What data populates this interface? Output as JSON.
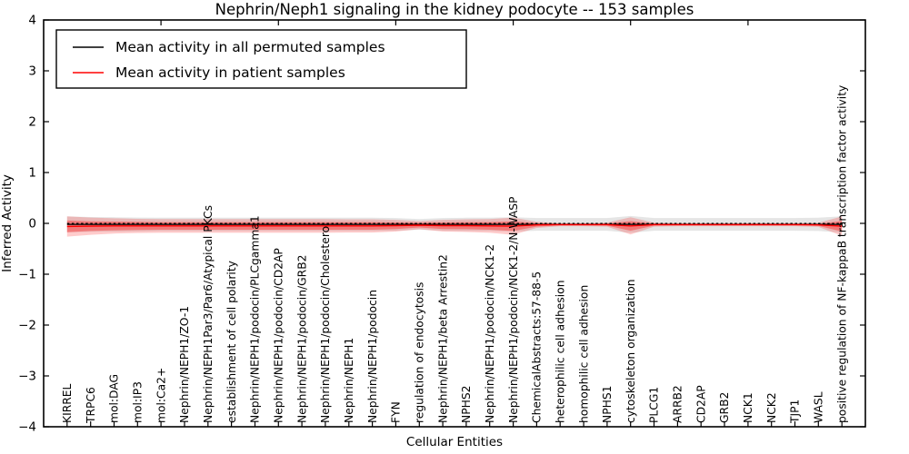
{
  "chart_data": {
    "type": "area",
    "title": "Nephrin/Neph1 signaling in the kidney podocyte -- 153 samples",
    "xlabel": "Cellular Entities",
    "ylabel": "Inferred Activity",
    "xlim": [
      0,
      35
    ],
    "ylim": [
      -4,
      4
    ],
    "yticks": [
      4,
      3,
      2,
      1,
      0,
      -1,
      -2,
      -3,
      -4
    ],
    "ytick_labels": [
      "4",
      "3",
      "2",
      "1",
      "0",
      "−1",
      "−2",
      "−3",
      "−4"
    ],
    "top_ticks_at": [
      5,
      10,
      15,
      20,
      25,
      30
    ],
    "grid": false,
    "legend_position": "upper-left",
    "legend": [
      {
        "label": "Mean activity in all permuted samples",
        "color": "#000000"
      },
      {
        "label": "Mean activity in patient samples",
        "color": "#ff0000"
      }
    ],
    "colors": {
      "permuted_fill": "rgba(125,125,125,0.20)",
      "patient_fill_outer": "rgba(255,0,0,0.20)",
      "patient_fill_inner": "rgba(255,0,0,0.33)",
      "permuted_line": "#000000",
      "patient_line": "#ff0000",
      "zero_line": "#000000"
    },
    "entities": [
      "KIRREL",
      "TRPC6",
      "mol:DAG",
      "mol:IP3",
      "mol:Ca2+",
      "Nephrin/NEPH1/ZO-1",
      "Nephrin/NEPH1Par3/Par6/Atypical PKCs",
      "establishment of cell polarity",
      "Nephrin/NEPH1/podocin/PLCgamma1",
      "Nephrin/NEPH1/podocin/CD2AP",
      "Nephrin/NEPH1/podocin/GRB2",
      "Nephrin/NEPH1/podocin/Cholesterol",
      "Nephrin/NEPH1",
      "Nephrin/NEPH1/podocin",
      "FYN",
      "regulation of endocytosis",
      "Nephrin/NEPH1/beta Arrestin2",
      "NPHS2",
      "Nephrin/NEPH1/podocin/NCK1-2",
      "Nephrin/NEPH1/podocin/NCK1-2/N-WASP",
      "ChemicalAbstracts:57-88-5",
      "heterophilic cell adhesion",
      "homophilic cell adhesion",
      "NPHS1",
      "cytoskeleton organization",
      "PLCG1",
      "ARRB2",
      "CD2AP",
      "GRB2",
      "NCK1",
      "NCK2",
      "TJP1",
      "WASL",
      "positive regulation of NF-kappaB transcription factor activity"
    ],
    "series": [
      {
        "role": "permuted_band",
        "name": "Permuted samples band",
        "half_widths": [
          0.155,
          0.145,
          0.14,
          0.135,
          0.13,
          0.13,
          0.13,
          0.13,
          0.13,
          0.13,
          0.13,
          0.13,
          0.13,
          0.13,
          0.125,
          0.105,
          0.125,
          0.13,
          0.13,
          0.14,
          0.125,
          0.125,
          0.125,
          0.125,
          0.165,
          0.125,
          0.125,
          0.125,
          0.125,
          0.125,
          0.125,
          0.125,
          0.13,
          0.16
        ]
      },
      {
        "role": "patient_band_outer",
        "name": "Patient samples band (outer)",
        "half_widths": [
          0.2,
          0.17,
          0.15,
          0.14,
          0.135,
          0.135,
          0.135,
          0.135,
          0.135,
          0.135,
          0.135,
          0.135,
          0.13,
          0.13,
          0.115,
          0.08,
          0.115,
          0.125,
          0.135,
          0.17,
          0.06,
          0.03,
          0.03,
          0.04,
          0.17,
          0.04,
          0.03,
          0.03,
          0.03,
          0.03,
          0.03,
          0.03,
          0.04,
          0.19
        ]
      },
      {
        "role": "patient_band_inner",
        "name": "Patient samples band (inner)",
        "half_widths": [
          0.115,
          0.095,
          0.085,
          0.08,
          0.075,
          0.075,
          0.075,
          0.075,
          0.075,
          0.075,
          0.075,
          0.075,
          0.075,
          0.075,
          0.065,
          0.045,
          0.065,
          0.07,
          0.075,
          0.095,
          0.035,
          0.015,
          0.015,
          0.02,
          0.095,
          0.02,
          0.015,
          0.015,
          0.015,
          0.015,
          0.015,
          0.015,
          0.02,
          0.105
        ]
      },
      {
        "role": "permuted_mean",
        "name": "Mean activity in all permuted samples",
        "value": -0.02
      },
      {
        "role": "patient_mean",
        "name": "Mean activity in patient samples",
        "values": [
          -0.06,
          -0.055,
          -0.05,
          -0.05,
          -0.05,
          -0.05,
          -0.05,
          -0.05,
          -0.05,
          -0.05,
          -0.05,
          -0.05,
          -0.05,
          -0.05,
          -0.045,
          -0.035,
          -0.045,
          -0.045,
          -0.05,
          -0.055,
          -0.03,
          -0.025,
          -0.025,
          -0.025,
          -0.05,
          -0.025,
          -0.025,
          -0.025,
          -0.025,
          -0.025,
          -0.025,
          -0.025,
          -0.03,
          -0.055
        ]
      }
    ],
    "zero_line_y": 0
  }
}
